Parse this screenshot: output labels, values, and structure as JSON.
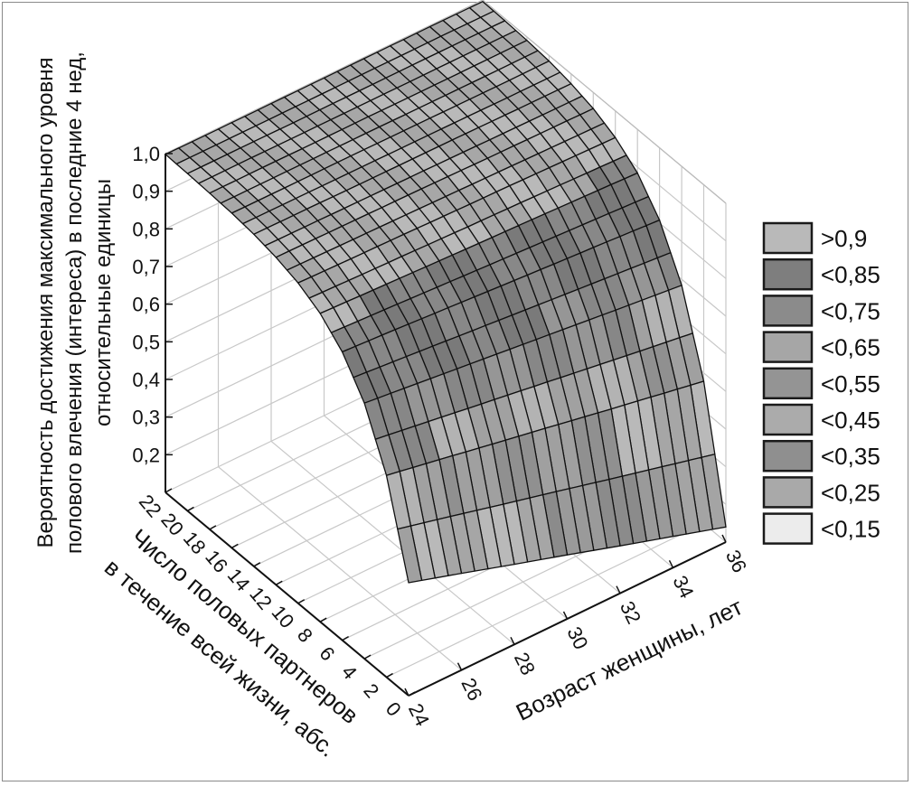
{
  "chart_data": {
    "type": "surface3d",
    "zlabel_lines": [
      "Вероятность достижения максимального уровня",
      "полового влечения (интереса) в последние 4 нед,",
      "относительные единицы"
    ],
    "xlabel": "Возраст женщины, лет",
    "ylabel_lines": [
      "Число половых партнеров",
      "в течение всей жизни, абс."
    ],
    "age_ticks": [
      24,
      26,
      28,
      30,
      32,
      34,
      36
    ],
    "partner_ticks": [
      0,
      2,
      4,
      6,
      8,
      10,
      12,
      14,
      16,
      18,
      20,
      22
    ],
    "z_ticks": [
      "0,2",
      "0,3",
      "0,4",
      "0,5",
      "0,6",
      "0,7",
      "0,8",
      "0,9",
      "1,0"
    ],
    "z_tick_values": [
      0.2,
      0.3,
      0.4,
      0.5,
      0.6,
      0.7,
      0.8,
      0.9,
      1.0
    ],
    "zlim": [
      0.1,
      1.0
    ],
    "age_range": [
      24,
      36
    ],
    "partner_range": [
      0,
      22
    ],
    "grid_ages": [
      24,
      26,
      28,
      30,
      32,
      34,
      36
    ],
    "grid_partners": [
      0,
      2,
      4,
      6,
      8,
      10,
      12,
      14,
      16,
      18,
      20,
      22
    ],
    "z": [
      [
        0.4,
        0.357,
        0.313,
        0.27,
        0.226,
        0.183,
        0.14
      ],
      [
        0.636,
        0.61,
        0.583,
        0.557,
        0.53,
        0.504,
        0.478
      ],
      [
        0.779,
        0.763,
        0.747,
        0.731,
        0.715,
        0.699,
        0.684
      ],
      [
        0.866,
        0.857,
        0.847,
        0.837,
        0.827,
        0.818,
        0.808
      ],
      [
        0.919,
        0.913,
        0.907,
        0.901,
        0.896,
        0.89,
        0.884
      ],
      [
        0.951,
        0.947,
        0.944,
        0.94,
        0.937,
        0.933,
        0.929
      ],
      [
        0.97,
        0.968,
        0.966,
        0.964,
        0.961,
        0.959,
        0.957
      ],
      [
        0.982,
        0.981,
        0.979,
        0.978,
        0.977,
        0.975,
        0.974
      ],
      [
        0.989,
        0.988,
        0.988,
        0.987,
        0.986,
        0.985,
        0.985
      ],
      [
        0.993,
        0.993,
        0.992,
        0.992,
        0.991,
        0.991,
        0.991
      ],
      [
        0.996,
        0.996,
        0.995,
        0.995,
        0.995,
        0.995,
        0.994
      ],
      [
        0.998,
        0.997,
        0.997,
        0.997,
        0.997,
        0.997,
        0.996
      ]
    ],
    "legend": [
      {
        "label": ">0,9",
        "color": "#b9b9b9"
      },
      {
        "label": "<0,85",
        "color": "#7e7e7e"
      },
      {
        "label": "<0,75",
        "color": "#8b8b8b"
      },
      {
        "label": "<0,65",
        "color": "#a6a6a6"
      },
      {
        "label": "<0,55",
        "color": "#949494"
      },
      {
        "label": "<0,45",
        "color": "#ababab"
      },
      {
        "label": "<0,35",
        "color": "#8f8f8f"
      },
      {
        "label": "<0,25",
        "color": "#a9a9a9"
      },
      {
        "label": "<0,15",
        "color": "#ececec"
      }
    ],
    "legend_thresholds": [
      0.9,
      0.85,
      0.75,
      0.65,
      0.55,
      0.45,
      0.35,
      0.25,
      0.15
    ],
    "legend_placement": "right"
  }
}
